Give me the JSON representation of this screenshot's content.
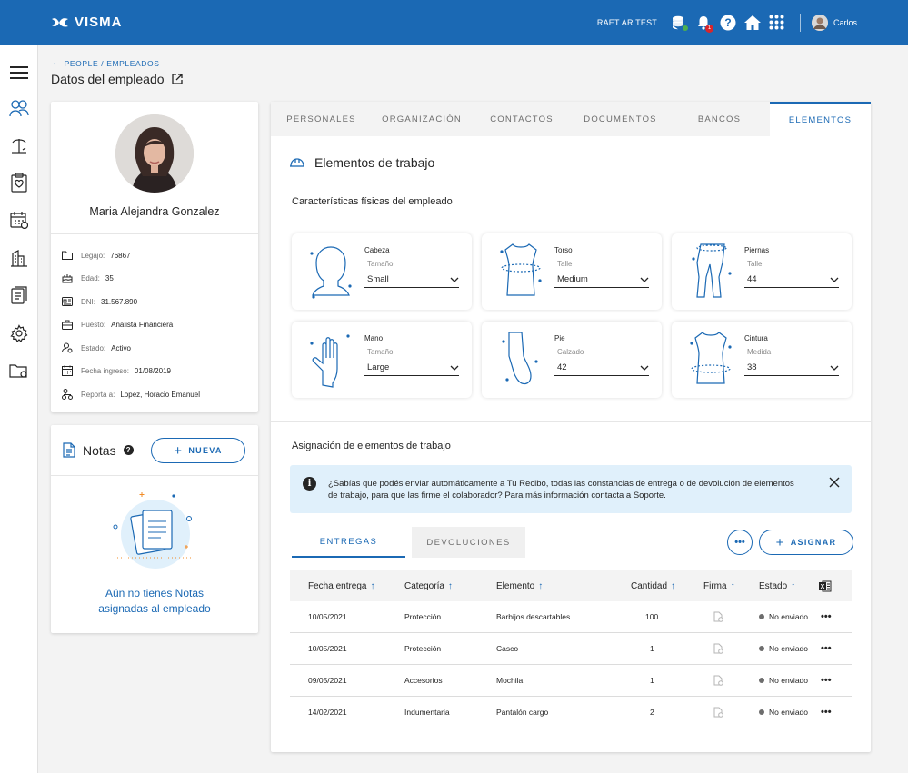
{
  "app": {
    "brand": "VISMA",
    "company": "RAET AR TEST",
    "user": "Carlos"
  },
  "breadcrumb": {
    "people": "PEOPLE",
    "sep": "/",
    "empleados": "EMPLEADOS"
  },
  "page_title": "Datos del empleado",
  "profile": {
    "name": "Maria Alejandra Gonzalez",
    "fields": [
      {
        "label": "Legajo:",
        "value": "76867",
        "icon": "folder-icon"
      },
      {
        "label": "Edad:",
        "value": "35",
        "icon": "cake-icon"
      },
      {
        "label": "DNI:",
        "value": "31.567.890",
        "icon": "id-card-icon"
      },
      {
        "label": "Puesto:",
        "value": "Analista Financiera",
        "icon": "briefcase-icon"
      },
      {
        "label": "Estado:",
        "value": "Activo",
        "icon": "person-status-icon"
      },
      {
        "label": "Fecha ingreso:",
        "value": "01/08/2019",
        "icon": "calendar-icon"
      },
      {
        "label": "Reporta a:",
        "value": "Lopez, Horacio Emanuel",
        "icon": "hierarchy-icon"
      }
    ]
  },
  "notes": {
    "title": "Notas",
    "help": "?",
    "new_label": "NUEVA",
    "empty_line1": "Aún no tienes Notas",
    "empty_line2": "asignadas al empleado"
  },
  "tabs": [
    "PERSONALES",
    "ORGANIZACIÓN",
    "CONTACTOS",
    "DOCUMENTOS",
    "BANCOS",
    "ELEMENTOS"
  ],
  "active_tab": "ELEMENTOS",
  "section_title": "Elementos de trabajo",
  "physical_title": "Características físicas del empleado",
  "elements": [
    {
      "category": "Cabeza",
      "sublabel": "Tamaño",
      "value": "Small",
      "icon": "head-icon"
    },
    {
      "category": "Torso",
      "sublabel": "Talle",
      "value": "Medium",
      "icon": "torso-icon"
    },
    {
      "category": "Piernas",
      "sublabel": "Talle",
      "value": "44",
      "icon": "legs-icon"
    },
    {
      "category": "Mano",
      "sublabel": "Tamaño",
      "value": "Large",
      "icon": "hand-icon"
    },
    {
      "category": "Pie",
      "sublabel": "Calzado",
      "value": "42",
      "icon": "foot-icon"
    },
    {
      "category": "Cintura",
      "sublabel": "Medida",
      "value": "38",
      "icon": "waist-icon"
    }
  ],
  "assign_title": "Asignación de elementos de trabajo",
  "alert": {
    "icon": "i",
    "text": "¿Sabías que podés enviar automáticamente a Tu Recibo, todas las constancias de entrega o de devolución de elementos de trabajo, para que las firme el colaborador? Para más información contacta a Soporte."
  },
  "subtabs": {
    "active": "ENTREGAS",
    "inactive": "DEVOLUCIONES"
  },
  "buttons": {
    "more": "•••",
    "assign": "ASIGNAR"
  },
  "table": {
    "headers": [
      "Fecha entrega",
      "Categoría",
      "Elemento",
      "Cantidad",
      "Firma",
      "Estado"
    ],
    "rows": [
      {
        "fecha": "10/05/2021",
        "categoria": "Protección",
        "elemento": "Barbijos descartables",
        "cantidad": "100",
        "estado": "No enviado"
      },
      {
        "fecha": "10/05/2021",
        "categoria": "Protección",
        "elemento": "Casco",
        "cantidad": "1",
        "estado": "No enviado"
      },
      {
        "fecha": "09/05/2021",
        "categoria": "Accesorios",
        "elemento": "Mochila",
        "cantidad": "1",
        "estado": "No enviado"
      },
      {
        "fecha": "14/02/2021",
        "categoria": "Indumentaria",
        "elemento": "Pantalón cargo",
        "cantidad": "2",
        "estado": "No enviado"
      }
    ]
  },
  "colors": {
    "primary": "#1b69b4",
    "alert_bg": "#e0f0fb",
    "danger": "#d9262b"
  }
}
